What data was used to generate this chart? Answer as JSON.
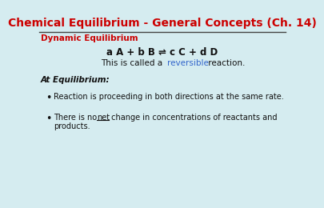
{
  "title": "Chemical Equilibrium - General Concepts (Ch. 14)",
  "title_color": "#CC0000",
  "title_fontsize": 10.0,
  "background_color": "#D5ECF0",
  "line_color": "#444444",
  "section_label": "Dynamic Equilibrium",
  "section_label_color": "#CC0000",
  "section_label_fontsize": 7.5,
  "equation": "a A + b B ⇌ c C + d D",
  "equation_fontsize": 8.5,
  "caption_fontsize": 7.5,
  "caption_link_color": "#3366CC",
  "at_equilibrium_fontsize": 7.5,
  "bullet_fontsize": 7.0,
  "bullet_color": "#111111",
  "bullet1": "Reaction is proceeding in both directions at the same rate.",
  "bullet2_part1": "There is no ",
  "bullet2_underline": "net",
  "bullet2_part2": " change in concentrations of reactants and",
  "bullet2_line2": "products."
}
